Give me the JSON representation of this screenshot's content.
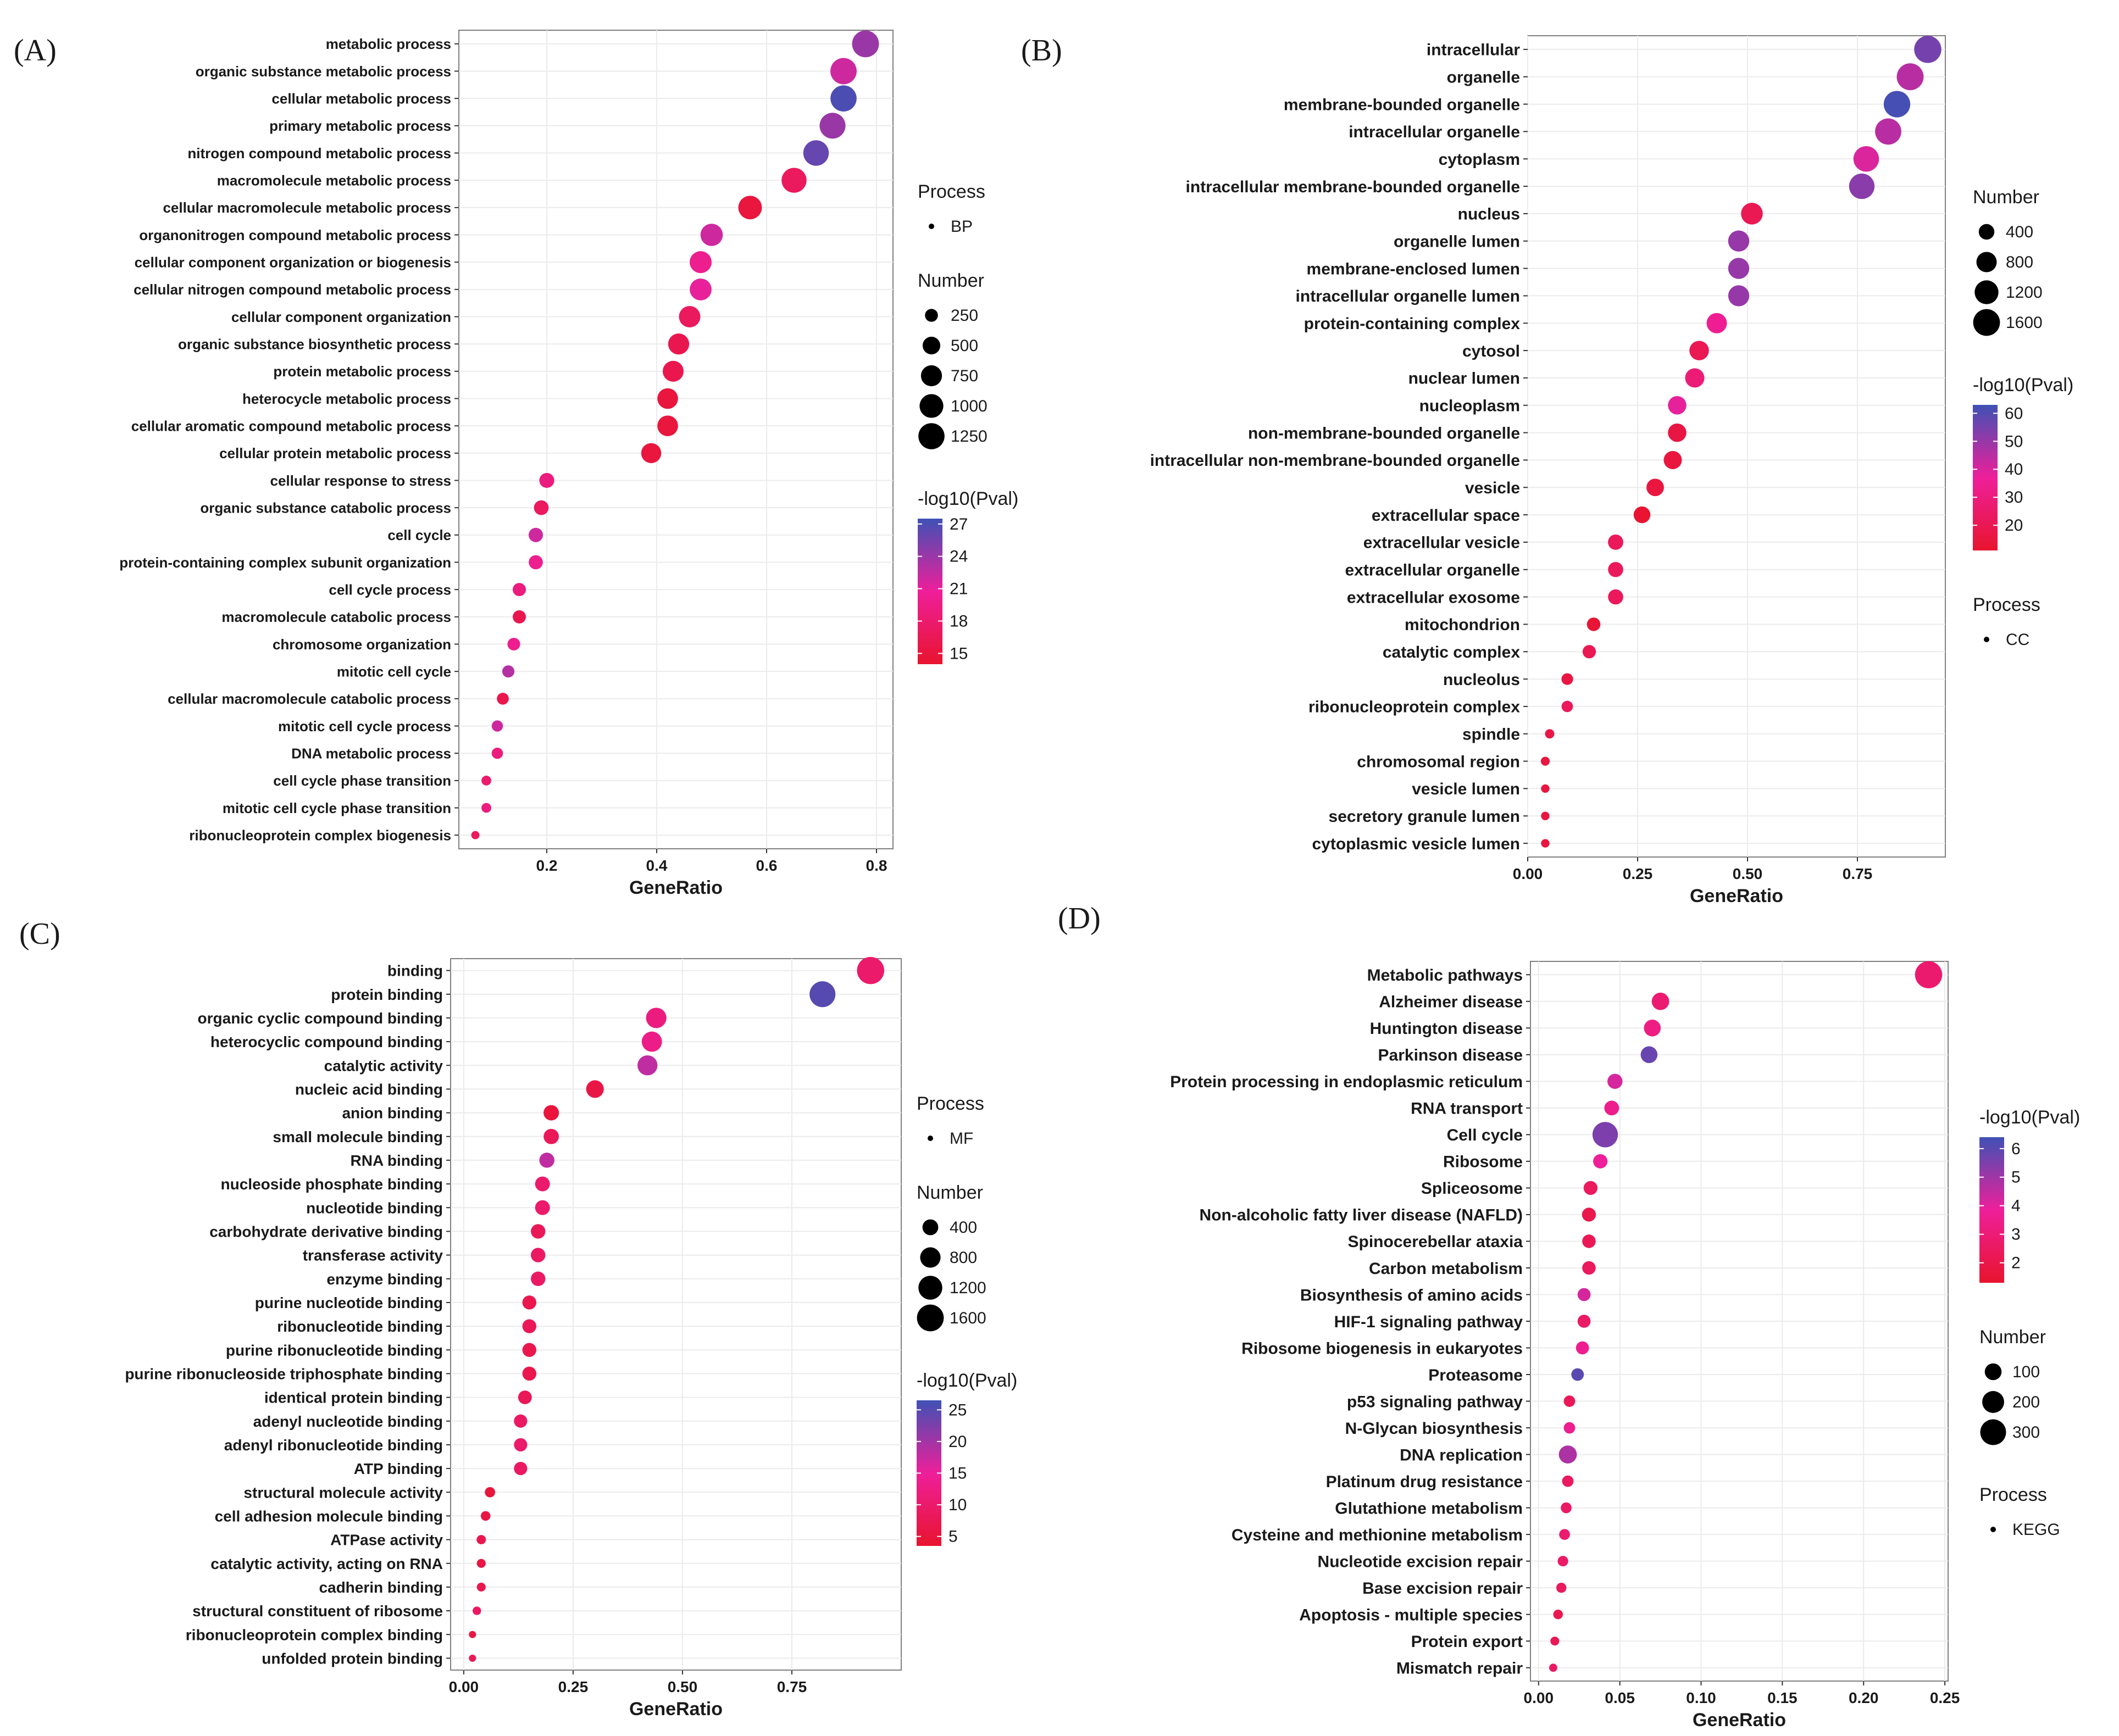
{
  "chart_data": [
    {
      "panel_label": "(A)",
      "type": "scatter",
      "xlabel": "GeneRatio",
      "x_ticks": [
        "0.2",
        "0.4",
        "0.6",
        "0.8"
      ],
      "xlim": [
        0.04,
        0.83
      ],
      "categories": [
        "metabolic process",
        "organic substance metabolic process",
        "cellular metabolic process",
        "primary metabolic process",
        "nitrogen compound metabolic process",
        "macromolecule metabolic process",
        "cellular macromolecule metabolic process",
        "organonitrogen compound metabolic process",
        "cellular component organization or biogenesis",
        "cellular nitrogen compound metabolic process",
        "cellular component organization",
        "organic substance biosynthetic process",
        "protein metabolic process",
        "heterocycle metabolic process",
        "cellular aromatic compound metabolic process",
        "cellular protein metabolic process",
        "cellular response to stress",
        "organic substance catabolic process",
        "cell cycle",
        "protein-containing complex subunit organization",
        "cell cycle process",
        "macromolecule catabolic process",
        "chromosome organization",
        "mitotic cell cycle",
        "cellular macromolecule catabolic process",
        "mitotic cell cycle process",
        "DNA metabolic process",
        "cell cycle phase transition",
        "mitotic cell cycle phase transition",
        "ribonucleoprotein complex biogenesis"
      ],
      "gene_ratio": [
        0.78,
        0.74,
        0.74,
        0.72,
        0.69,
        0.65,
        0.57,
        0.5,
        0.48,
        0.48,
        0.46,
        0.44,
        0.43,
        0.42,
        0.42,
        0.39,
        0.2,
        0.19,
        0.18,
        0.18,
        0.15,
        0.15,
        0.14,
        0.13,
        0.12,
        0.11,
        0.11,
        0.09,
        0.09,
        0.07
      ],
      "number": [
        1330,
        1270,
        1250,
        1220,
        1180,
        1120,
        980,
        860,
        830,
        820,
        780,
        750,
        740,
        720,
        720,
        670,
        340,
        330,
        310,
        300,
        260,
        260,
        240,
        220,
        210,
        190,
        190,
        150,
        150,
        120
      ],
      "neg_log10_pval": [
        24,
        22,
        27,
        24,
        26,
        17,
        15,
        22,
        20,
        21,
        17,
        16,
        16,
        15,
        15,
        15,
        19,
        17,
        22,
        20,
        19,
        16,
        20,
        23,
        16,
        22,
        19,
        18,
        19,
        17
      ],
      "legend": {
        "process_title": "Process",
        "process_value": "BP",
        "number_title": "Number",
        "number_ticks": [
          250,
          500,
          750,
          1000,
          1250
        ],
        "number_range": [
          100,
          1400
        ],
        "color_title": "-log10(Pval)",
        "color_ticks": [
          27,
          24,
          21,
          18,
          15
        ],
        "color_range": [
          14,
          27.5
        ]
      },
      "legend_order": [
        "process",
        "number",
        "color"
      ]
    },
    {
      "panel_label": "(B)",
      "type": "scatter",
      "xlabel": "GeneRatio",
      "x_ticks": [
        "0.00",
        "0.25",
        "0.50",
        "0.75"
      ],
      "xlim": [
        0,
        0.95
      ],
      "categories": [
        "intracellular",
        "organelle",
        "membrane-bounded organelle",
        "intracellular organelle",
        "cytoplasm",
        "intracellular membrane-bounded organelle",
        "nucleus",
        "organelle lumen",
        "membrane-enclosed lumen",
        "intracellular organelle lumen",
        "protein-containing complex",
        "cytosol",
        "nuclear lumen",
        "nucleoplasm",
        "non-membrane-bounded organelle",
        "intracellular non-membrane-bounded organelle",
        "vesicle",
        "extracellular space",
        "extracellular vesicle",
        "extracellular organelle",
        "extracellular exosome",
        "mitochondrion",
        "catalytic complex",
        "nucleolus",
        "ribonucleoprotein complex",
        "spindle",
        "chromosomal region",
        "vesicle lumen",
        "secretory granule lumen",
        "cytoplasmic vesicle lumen"
      ],
      "gene_ratio": [
        0.91,
        0.87,
        0.84,
        0.82,
        0.77,
        0.76,
        0.51,
        0.48,
        0.48,
        0.48,
        0.43,
        0.39,
        0.38,
        0.34,
        0.34,
        0.33,
        0.29,
        0.26,
        0.2,
        0.2,
        0.2,
        0.15,
        0.14,
        0.09,
        0.09,
        0.05,
        0.04,
        0.04,
        0.04,
        0.04
      ],
      "number": [
        1660,
        1610,
        1560,
        1520,
        1420,
        1410,
        950,
        890,
        880,
        880,
        800,
        720,
        700,
        620,
        620,
        600,
        540,
        480,
        380,
        370,
        370,
        270,
        260,
        180,
        170,
        100,
        90,
        80,
        80,
        80
      ],
      "neg_log10_pval": [
        55,
        45,
        62,
        45,
        40,
        52,
        20,
        50,
        50,
        50,
        35,
        20,
        28,
        38,
        16,
        15,
        15,
        12,
        22,
        22,
        22,
        13,
        20,
        16,
        22,
        17,
        15,
        15,
        15,
        15
      ],
      "legend": {
        "number_title": "Number",
        "number_ticks": [
          400,
          800,
          1200,
          1600
        ],
        "number_range": [
          50,
          1700
        ],
        "color_title": "-log10(Pval)",
        "color_ticks": [
          60,
          50,
          40,
          30,
          20
        ],
        "color_range": [
          11,
          63
        ],
        "process_title": "Process",
        "process_value": "CC"
      },
      "legend_order": [
        "number",
        "color",
        "process"
      ]
    },
    {
      "panel_label": "(C)",
      "type": "scatter",
      "xlabel": "GeneRatio",
      "x_ticks": [
        "0.00",
        "0.25",
        "0.50",
        "0.75"
      ],
      "xlim": [
        -0.03,
        1.0
      ],
      "categories": [
        "binding",
        "protein binding",
        "organic cyclic compound binding",
        "heterocyclic compound binding",
        "catalytic activity",
        "nucleic acid binding",
        "anion binding",
        "small molecule binding",
        "RNA binding",
        "nucleoside phosphate binding",
        "nucleotide binding",
        "carbohydrate derivative binding",
        "transferase activity",
        "enzyme binding",
        "purine nucleotide binding",
        "ribonucleotide binding",
        "purine ribonucleotide binding",
        "purine ribonucleoside triphosphate binding",
        "identical protein binding",
        "adenyl nucleotide binding",
        "adenyl ribonucleotide binding",
        "ATP binding",
        "structural molecule activity",
        "cell adhesion molecule binding",
        "ATPase activity",
        "catalytic activity, acting on RNA",
        "cadherin binding",
        "structural constituent of ribosome",
        "ribonucleoprotein complex binding",
        "unfolded protein binding"
      ],
      "gene_ratio": [
        0.93,
        0.82,
        0.44,
        0.43,
        0.42,
        0.3,
        0.2,
        0.2,
        0.19,
        0.18,
        0.18,
        0.17,
        0.17,
        0.17,
        0.15,
        0.15,
        0.15,
        0.15,
        0.14,
        0.13,
        0.13,
        0.13,
        0.06,
        0.05,
        0.04,
        0.04,
        0.04,
        0.03,
        0.02,
        0.02
      ],
      "number": [
        1660,
        1470,
        800,
        780,
        760,
        540,
        370,
        360,
        350,
        330,
        330,
        310,
        310,
        310,
        280,
        280,
        280,
        280,
        260,
        240,
        240,
        240,
        110,
        90,
        80,
        70,
        70,
        60,
        40,
        40
      ],
      "neg_log10_pval": [
        10,
        25,
        12,
        13,
        18,
        6,
        5,
        8,
        18,
        10,
        10,
        8,
        9,
        9,
        7,
        8,
        7,
        7,
        8,
        9,
        10,
        9,
        5,
        6,
        7,
        6,
        7,
        9,
        6,
        8
      ],
      "legend": {
        "process_title": "Process",
        "process_value": "MF",
        "number_title": "Number",
        "number_ticks": [
          400,
          800,
          1200,
          1600
        ],
        "number_range": [
          30,
          1700
        ],
        "color_title": "-log10(Pval)",
        "color_ticks": [
          25,
          20,
          15,
          10,
          5
        ],
        "color_range": [
          3.5,
          26.5
        ]
      },
      "legend_order": [
        "process",
        "number",
        "color"
      ]
    },
    {
      "panel_label": "(D)",
      "type": "scatter",
      "xlabel": "GeneRatio",
      "x_ticks": [
        "0.00",
        "0.05",
        "0.10",
        "0.15",
        "0.20",
        "0.25"
      ],
      "xlim": [
        -0.005,
        0.252
      ],
      "categories": [
        "Metabolic pathways",
        "Alzheimer disease",
        "Huntington disease",
        "Parkinson disease",
        "Protein processing in endoplasmic reticulum",
        "RNA transport",
        "Cell cycle",
        "Ribosome",
        "Spliceosome",
        "Non-alcoholic fatty liver disease (NAFLD)",
        "Spinocerebellar ataxia",
        "Carbon metabolism",
        "Biosynthesis of amino acids",
        "HIF-1 signaling pathway",
        "Ribosome biogenesis in eukaryotes",
        "Proteasome",
        "p53 signaling pathway",
        "N-Glycan biosynthesis",
        "DNA replication",
        "Platinum drug resistance",
        "Glutathione metabolism",
        "Cysteine and methionine metabolism",
        "Nucleotide excision repair",
        "Base excision repair",
        "Apoptosis - multiple species",
        "Protein export",
        "Mismatch repair"
      ],
      "gene_ratio": [
        0.24,
        0.075,
        0.07,
        0.068,
        0.047,
        0.045,
        0.041,
        0.038,
        0.032,
        0.031,
        0.031,
        0.031,
        0.028,
        0.028,
        0.027,
        0.024,
        0.019,
        0.019,
        0.018,
        0.018,
        0.017,
        0.016,
        0.015,
        0.014,
        0.012,
        0.01,
        0.009
      ],
      "number": [
        340,
        110,
        100,
        100,
        75,
        70,
        290,
        65,
        60,
        60,
        55,
        55,
        50,
        50,
        50,
        45,
        35,
        35,
        120,
        35,
        30,
        30,
        28,
        25,
        22,
        18,
        15
      ],
      "neg_log10_pval": [
        2.8,
        2.9,
        3.3,
        5.8,
        4.2,
        3.5,
        5.5,
        3.8,
        2.4,
        2.0,
        2.2,
        2.4,
        4.2,
        2.6,
        3.6,
        6.0,
        2.3,
        3.6,
        4.8,
        2.4,
        2.6,
        2.8,
        2.6,
        2.4,
        2.1,
        2.2,
        2.6
      ],
      "legend": {
        "color_title": "-log10(Pval)",
        "color_ticks": [
          6,
          5,
          4,
          3,
          2
        ],
        "color_range": [
          1.3,
          6.4
        ],
        "number_title": "Number",
        "number_ticks": [
          100,
          200,
          300
        ],
        "number_range": [
          10,
          350
        ],
        "process_title": "Process",
        "process_value": "KEGG"
      },
      "legend_order": [
        "color",
        "number",
        "process"
      ]
    }
  ],
  "colors": {
    "low": "#e8142e",
    "mid": "#ee1f9a",
    "high": "#3f51b5",
    "grid": "#ebebeb",
    "frame": "#7f7f7f",
    "text": "#1a1a1a"
  }
}
